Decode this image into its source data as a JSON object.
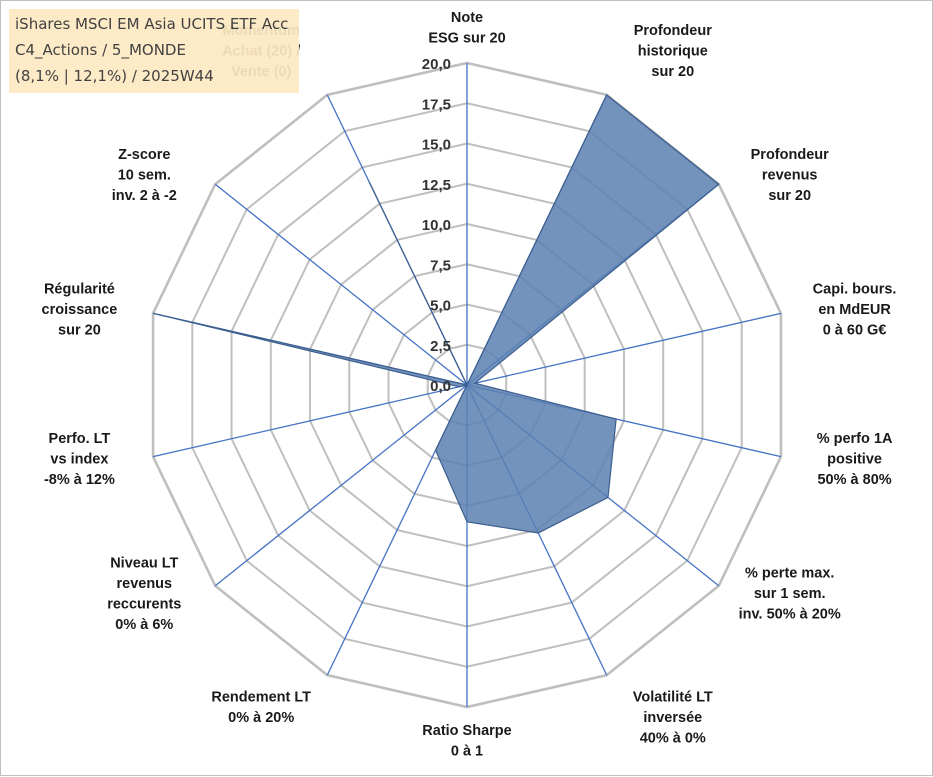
{
  "info_box": {
    "line1": "iShares MSCI EM Asia UCITS ETF Acc",
    "line2": "C4_Actions / 5_MONDE",
    "line3": "(8,1% | 12,1%) / 2025W44"
  },
  "chart_data": {
    "type": "radar",
    "title": "",
    "rlim": [
      0,
      20
    ],
    "grid": true,
    "tick_labels": [
      "0,0",
      "2,5",
      "5,0",
      "7,5",
      "10,0",
      "12,5",
      "15,0",
      "17,5",
      "20,0"
    ],
    "axes": [
      [
        "Note",
        "ESG sur 20"
      ],
      [
        "Profondeur",
        "historique",
        "sur 20"
      ],
      [
        "Profondeur",
        "revenus",
        "sur 20"
      ],
      [
        "Capi. bours.",
        "en MdEUR",
        "0 à 60 G€"
      ],
      [
        "% perfo 1A",
        "positive",
        "50% à 80%"
      ],
      [
        "% perte max.",
        "sur 1 sem.",
        "inv. 50% à 20%"
      ],
      [
        "Volatilité LT",
        "inversée",
        "40% à 0%"
      ],
      [
        "Ratio Sharpe",
        "0 à 1"
      ],
      [
        "Rendement LT",
        "0% à 20%"
      ],
      [
        "Niveau LT",
        "revenus",
        "reccurents",
        "0% à 6%"
      ],
      [
        "Perfo. LT",
        "vs index",
        "-8% à 12%"
      ],
      [
        "Régularité",
        "croissance",
        "sur 20"
      ],
      [
        "Z-score",
        "10 sem.",
        "inv. 2 à -2"
      ],
      [
        "Momentum",
        "Achat (20) /",
        "Vente (0)"
      ]
    ],
    "series": [
      {
        "values": [
          0,
          20,
          20,
          0.5,
          9.5,
          11.2,
          10.2,
          8.5,
          4.5,
          0,
          0.5,
          20,
          0,
          14
        ]
      }
    ],
    "colors": {
      "fill": "#5b80b1",
      "stroke": "#3d5f8f",
      "axis": "#4472c4",
      "grid": "#bfbfbf",
      "tick_gold": "#c9a15a"
    }
  }
}
